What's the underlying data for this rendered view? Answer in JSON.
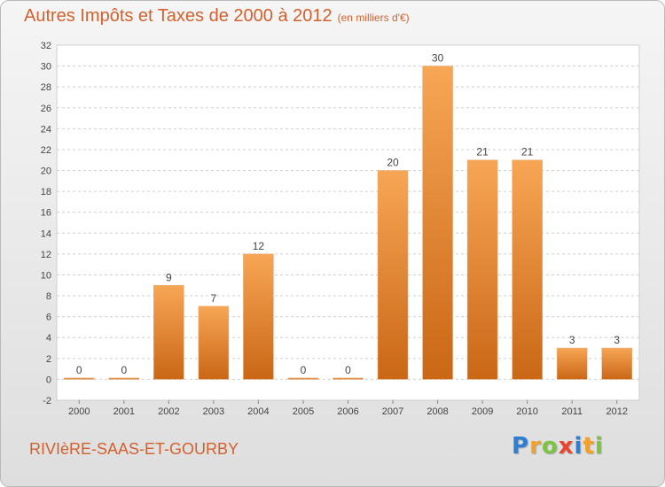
{
  "header": {
    "title": "Autres Impôts et Taxes de 2000 à 2012",
    "subtitle": "(en milliers d'€)"
  },
  "footer": {
    "commune": "RIVIèRE-SAAS-ET-GOURBY",
    "logo_letters": [
      {
        "char": "P",
        "color": "#2f7fd1"
      },
      {
        "char": "r",
        "color": "#f2a126"
      },
      {
        "char": "o",
        "color": "#7cc243"
      },
      {
        "char": "x",
        "color": "#e8452a"
      },
      {
        "char": "i",
        "color": "#2f7fd1"
      },
      {
        "char": "t",
        "color": "#f2a126"
      },
      {
        "char": "i",
        "color": "#7cc243"
      }
    ]
  },
  "colors": {
    "bar_top": "#f7a655",
    "bar_bottom": "#c96716",
    "accent": "#d2612d"
  },
  "chart_data": {
    "type": "bar",
    "categories": [
      "2000",
      "2001",
      "2002",
      "2003",
      "2004",
      "2005",
      "2006",
      "2007",
      "2008",
      "2009",
      "2010",
      "2011",
      "2012"
    ],
    "values": [
      0,
      0,
      9,
      7,
      12,
      0,
      0,
      20,
      30,
      21,
      21,
      3,
      3
    ],
    "data_labels": [
      "0",
      "0",
      "9",
      "7",
      "12",
      "0",
      "0",
      "20",
      "30",
      "21",
      "21",
      "3",
      "3"
    ],
    "yticks": [
      -2,
      0,
      2,
      4,
      6,
      8,
      10,
      12,
      14,
      16,
      18,
      20,
      22,
      24,
      26,
      28,
      30,
      32
    ],
    "ylim": [
      -2,
      32
    ],
    "grid": "horizontal dashed",
    "title": "Autres Impôts et Taxes de 2000 à 2012",
    "xlabel": "",
    "ylabel": ""
  }
}
